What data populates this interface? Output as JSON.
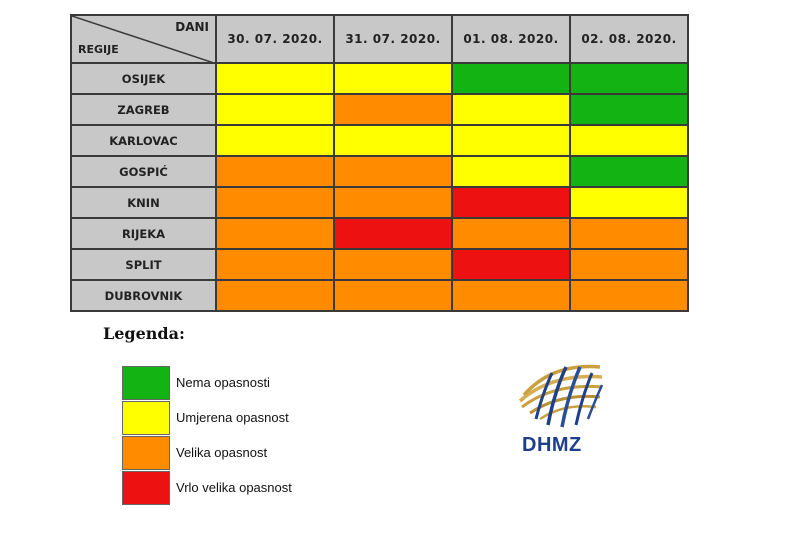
{
  "table": {
    "corner_top": "DANI",
    "corner_bottom": "REGIJE",
    "dates": [
      "30. 07. 2020.",
      "31. 07. 2020.",
      "01. 08. 2020.",
      "02. 08. 2020."
    ],
    "rows": [
      {
        "region": "OSIJEK",
        "levels": [
          1,
          1,
          0,
          0
        ]
      },
      {
        "region": "ZAGREB",
        "levels": [
          1,
          2,
          1,
          0
        ]
      },
      {
        "region": "KARLOVAC",
        "levels": [
          1,
          1,
          1,
          1
        ]
      },
      {
        "region": "GOSPIĆ",
        "levels": [
          2,
          2,
          1,
          0
        ]
      },
      {
        "region": "KNIN",
        "levels": [
          2,
          2,
          3,
          1
        ]
      },
      {
        "region": "RIJEKA",
        "levels": [
          2,
          3,
          2,
          2
        ]
      },
      {
        "region": "SPLIT",
        "levels": [
          2,
          2,
          3,
          2
        ]
      },
      {
        "region": "DUBROVNIK",
        "levels": [
          2,
          2,
          2,
          2
        ]
      }
    ]
  },
  "legend": {
    "title": "Legenda:",
    "items": [
      {
        "label": "Nema opasnosti",
        "color": "#12b312"
      },
      {
        "label": "Umjerena opasnost",
        "color": "#ffff00"
      },
      {
        "label": "Velika opasnost",
        "color": "#ff8c00"
      },
      {
        "label": "Vrlo velika opasnost",
        "color": "#ee1111"
      }
    ]
  },
  "logo": {
    "text": "DHMZ"
  }
}
